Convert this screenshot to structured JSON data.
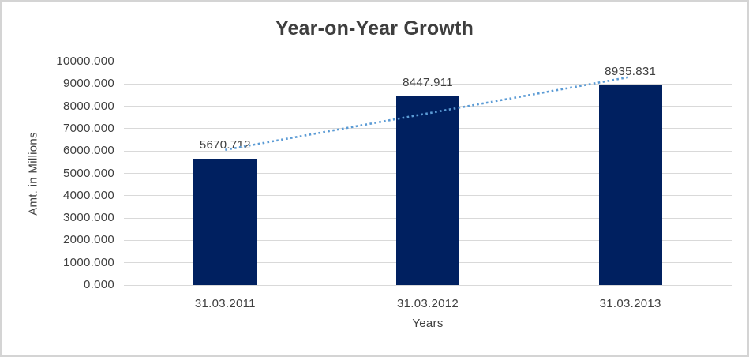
{
  "chart_data": {
    "type": "bar",
    "title": "Year-on-Year Growth",
    "xlabel": "Years",
    "ylabel": "Amt. in Millions",
    "categories": [
      "31.03.2011",
      "31.03.2012",
      "31.03.2013"
    ],
    "values": [
      5670.712,
      8447.911,
      8935.831
    ],
    "data_labels": [
      "5670.712",
      "8447.911",
      "8935.831"
    ],
    "ylim": [
      0,
      10000
    ],
    "ytick_labels": [
      "0.000",
      "1000.000",
      "2000.000",
      "3000.000",
      "4000.000",
      "5000.000",
      "6000.000",
      "7000.000",
      "8000.000",
      "9000.000",
      "10000.000"
    ],
    "grid": true,
    "legend": "none",
    "trendline": {
      "type": "linear",
      "style": "dotted",
      "endpoint_values": [
        6052.3,
        9317.4
      ]
    },
    "colors": {
      "bar": "#002060",
      "trendline": "#5B9BD5",
      "gridline": "#D9D9D9",
      "text": "#404040",
      "title": "#3E3E3E",
      "border": "#D4D4D4",
      "background": "#FFFFFF"
    }
  }
}
